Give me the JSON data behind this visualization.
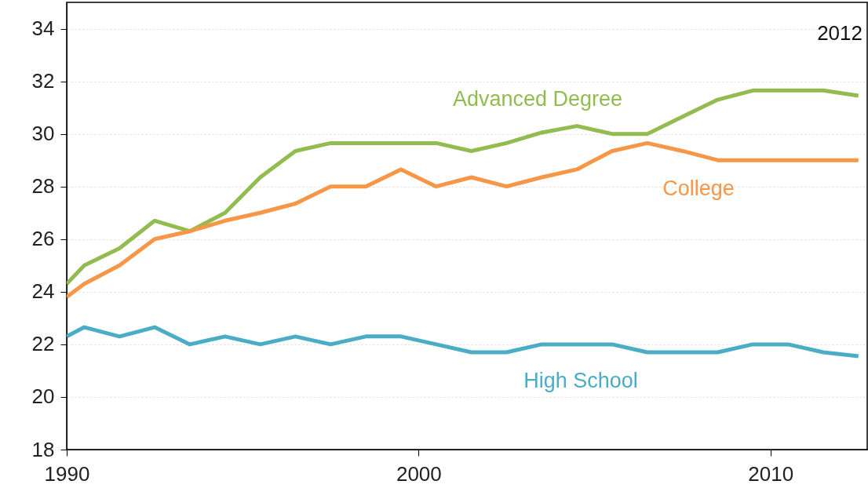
{
  "chart_data": {
    "type": "line",
    "x": [
      1990,
      1990.5,
      1991.5,
      1992.5,
      1993.5,
      1994.5,
      1995.5,
      1996.5,
      1997.5,
      1998.5,
      1999.5,
      2000.5,
      2001.5,
      2002.5,
      2003.5,
      2004.5,
      2005.5,
      2006.5,
      2007.5,
      2008.5,
      2009.5,
      2010.5,
      2011.5,
      2012.5
    ],
    "series": [
      {
        "name": "Advanced Degree",
        "color": "#92bb50",
        "values": [
          24.3,
          25.0,
          25.65,
          26.7,
          26.3,
          27.0,
          28.35,
          29.35,
          29.65,
          29.65,
          29.65,
          29.65,
          29.35,
          29.65,
          30.05,
          30.3,
          30.0,
          30.0,
          30.65,
          31.3,
          31.65,
          31.65,
          31.65,
          31.45
        ]
      },
      {
        "name": "College",
        "color": "#f79646",
        "values": [
          23.8,
          24.3,
          25.0,
          26.0,
          26.3,
          26.7,
          27.0,
          27.35,
          28.0,
          28.0,
          28.65,
          28.0,
          28.35,
          28.0,
          28.35,
          28.65,
          29.35,
          29.65,
          29.35,
          29.0,
          29.0,
          29.0,
          29.0,
          29.0
        ]
      },
      {
        "name": "High School",
        "color": "#4bacc6",
        "values": [
          22.3,
          22.65,
          22.3,
          22.65,
          22.0,
          22.3,
          22.0,
          22.3,
          22.0,
          22.3,
          22.3,
          22.0,
          21.7,
          21.7,
          22.0,
          22.0,
          22.0,
          21.7,
          21.7,
          21.7,
          22.0,
          22.0,
          21.7,
          21.55
        ]
      }
    ],
    "xlim": [
      1990,
      2012.75
    ],
    "xticks": [
      1990,
      2000,
      2010
    ],
    "ylim": [
      18,
      35
    ],
    "yticks": [
      18,
      20,
      22,
      24,
      26,
      28,
      30,
      32,
      34
    ],
    "annotations": [
      "2012"
    ],
    "grid": "y"
  }
}
